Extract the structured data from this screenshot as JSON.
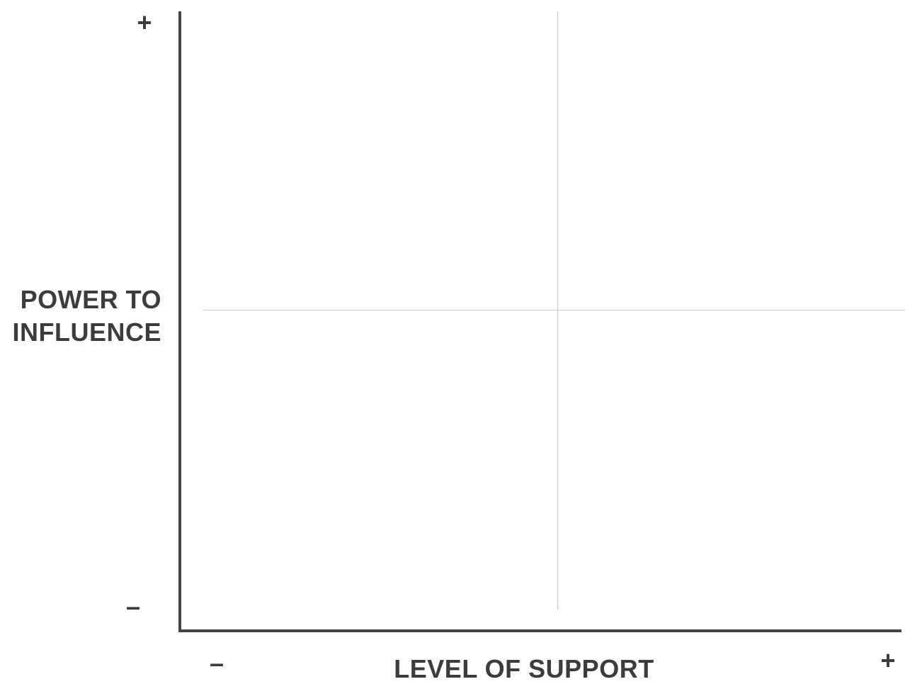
{
  "matrix": {
    "y_axis": {
      "label_lines": [
        "POWER TO",
        "INFLUENCE"
      ],
      "high_marker": "+",
      "low_marker": "–"
    },
    "x_axis": {
      "label": "LEVEL OF SUPPORT",
      "low_marker": "–",
      "high_marker": "+"
    }
  },
  "colors": {
    "axis": "#444444",
    "divider": "#c6c6c6",
    "text": "#3c3c3c",
    "background": "#ffffff"
  }
}
